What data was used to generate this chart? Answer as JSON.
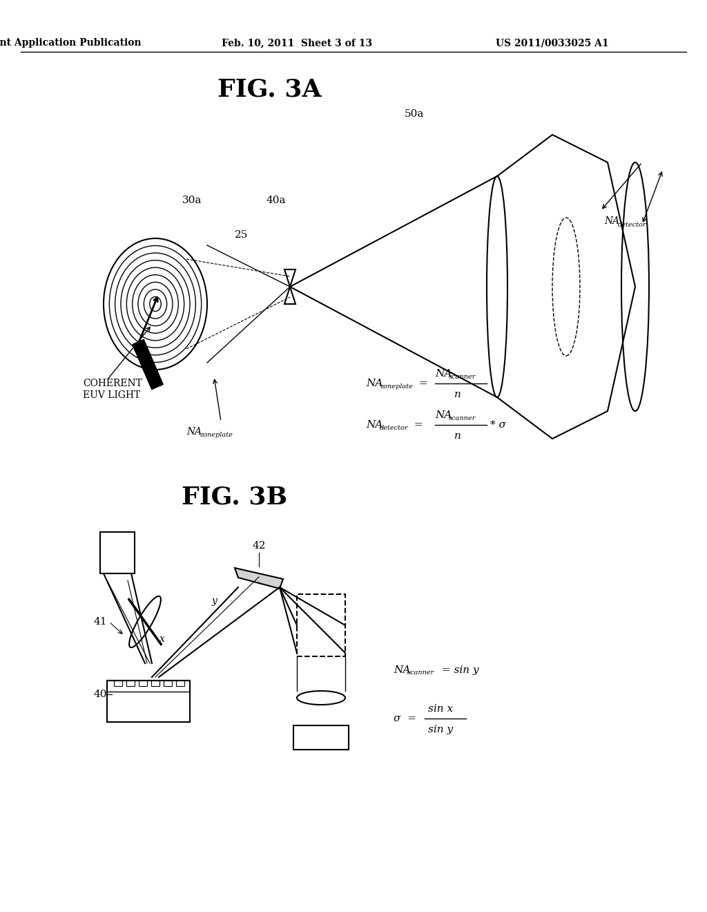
{
  "header_left": "Patent Application Publication",
  "header_mid": "Feb. 10, 2011  Sheet 3 of 13",
  "header_right": "US 2011/0033025 A1",
  "fig3a_title": "FIG. 3A",
  "fig3b_title": "FIG. 3B",
  "bg_color": "#ffffff",
  "text_color": "#000000",
  "line_color": "#000000"
}
